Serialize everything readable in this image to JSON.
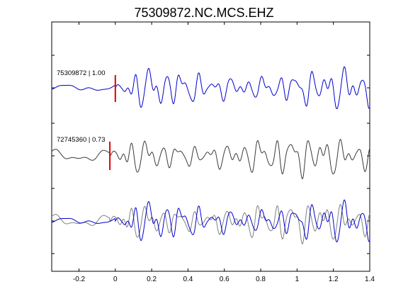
{
  "chart_data": {
    "type": "line",
    "title": "75309872.NC.MCS.EHZ",
    "xlabel": "",
    "ylabel": "",
    "xlim": [
      -0.35,
      1.4
    ],
    "x_ticks": [
      -0.2,
      0,
      0.2,
      0.4,
      0.6,
      0.8,
      1,
      1.2,
      1.4
    ],
    "x_tick_labels": [
      "-0.2",
      "0",
      "0.2",
      "0.4",
      "0.6",
      "0.8",
      "1",
      "1.2",
      "1.4"
    ],
    "grid": false,
    "traces": [
      {
        "label": "75309872 | 1.00",
        "color": "#0000cc",
        "pick_time": 0.0,
        "pick_color": "#dd0000"
      },
      {
        "label": "72745360 | 0.73",
        "color": "#3a3a3a",
        "pick_time": -0.03,
        "pick_color": "#dd0000"
      },
      {
        "label": "",
        "overlay": true,
        "colors": [
          "#0000cc",
          "#808080"
        ]
      }
    ]
  }
}
